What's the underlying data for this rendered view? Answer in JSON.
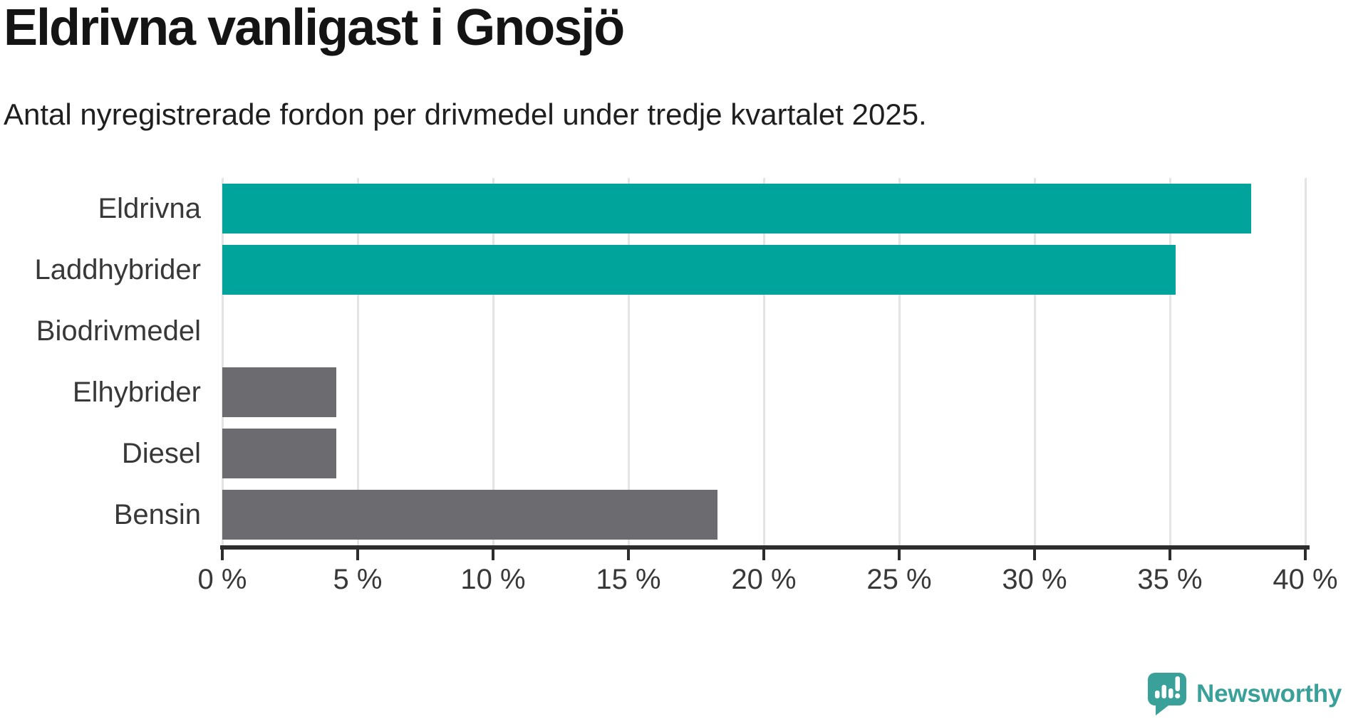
{
  "header": {
    "title": "Eldrivna vanligast i Gnosjö",
    "subtitle": "Antal nyregistrerade fordon per drivmedel under tredje kvartalet 2025."
  },
  "chart_data": {
    "type": "bar",
    "orientation": "horizontal",
    "title": "Eldrivna vanligast i Gnosjö",
    "subtitle": "Antal nyregistrerade fordon per drivmedel under tredje kvartalet 2025.",
    "categories": [
      "Eldrivna",
      "Laddhybrider",
      "Biodrivmedel",
      "Elhybrider",
      "Diesel",
      "Bensin"
    ],
    "values": [
      38,
      35.2,
      0,
      4.2,
      4.2,
      18.3
    ],
    "unit": "%",
    "xlabel": "",
    "ylabel": "",
    "xlim": [
      0,
      40
    ],
    "xticks": [
      0,
      5,
      10,
      15,
      20,
      25,
      30,
      35,
      40
    ],
    "xtick_labels": [
      "0 %",
      "5 %",
      "10 %",
      "15 %",
      "20 %",
      "25 %",
      "30 %",
      "35 %",
      "40 %"
    ],
    "grid": true,
    "legend": false,
    "bar_colors": [
      "#00a49b",
      "#00a49b",
      "#6c6b70",
      "#6c6b70",
      "#6c6b70",
      "#6c6b70"
    ],
    "colors": {
      "highlight": "#00a49b",
      "default_bar": "#6c6b70",
      "grid": "#e4e4e4",
      "axis": "#2d2d2d",
      "label_text": "#383838",
      "title_text": "#141414"
    }
  },
  "branding": {
    "logo_text": "Newsworthy",
    "logo_icon": "newsworthy-speech-bubble-bar-chart-icon",
    "logo_color": "#3aa09a"
  }
}
